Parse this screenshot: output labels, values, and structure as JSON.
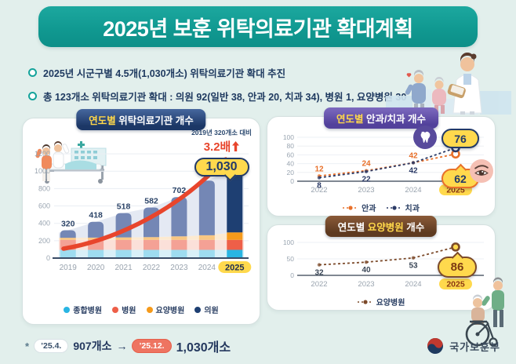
{
  "header": {
    "title": "2025년 보훈 위탁의료기관 확대계획"
  },
  "bullets": [
    "2025년 시군구별 4.5개(1,030개소) 위탁의료기관 확대 추진",
    "총 123개소 위탁의료기관 확대 : 의원 92(일반 38, 안과 20, 치과 34), 병원 1, 요양병원 30"
  ],
  "colors": {
    "banner_teal": "#12a098",
    "panel_navy": "#1c3766",
    "panel_purple": "#52419b",
    "panel_brown": "#5e3a20",
    "highlight_yellow": "#ffd94d",
    "arrow_red": "#e8452c",
    "eye_orange": "#e8702a",
    "dental_navy": "#2b3a66",
    "nursing_brown": "#7c4a2a",
    "text_navy": "#1f3a60"
  },
  "chart_data": [
    {
      "type": "bar",
      "title_parts": [
        [
          "연도별",
          "hl"
        ],
        [
          " 위탁의료기관 개수",
          "w"
        ]
      ],
      "categories": [
        "2019",
        "2020",
        "2021",
        "2022",
        "2023",
        "2024",
        "2025"
      ],
      "totals": [
        320,
        418,
        518,
        582,
        702,
        892,
        1030
      ],
      "total_labels": [
        "320",
        "418",
        "518",
        "582",
        "702",
        "892",
        "1,030"
      ],
      "series": [
        {
          "name": "종합병원",
          "color": "#9edcf0",
          "color_highlight": "#29b5e3",
          "values": [
            95,
            95,
            95,
            95,
            95,
            95,
            95
          ]
        },
        {
          "name": "병원",
          "color": "#f4a195",
          "color_highlight": "#ee5f48",
          "values": [
            115,
            115,
            115,
            115,
            115,
            115,
            115
          ]
        },
        {
          "name": "요양병원",
          "color": "#f8c783",
          "color_highlight": "#f59a1b",
          "values": [
            24,
            26,
            28,
            32,
            40,
            53,
            86
          ]
        },
        {
          "name": "의원",
          "color": "#7487b5",
          "color_highlight": "#1e3f72",
          "values": [
            86,
            182,
            280,
            340,
            452,
            629,
            734
          ]
        }
      ],
      "ylim": [
        0,
        1300
      ],
      "yticks": [
        0,
        200,
        400,
        600,
        800,
        1000,
        1200
      ],
      "grid": true,
      "legend_position": "bottom",
      "highlight_year": "2025",
      "annotation": {
        "line1": "2019년 320개소 대비",
        "multiplier": "3.2배",
        "badge": "1,030"
      }
    },
    {
      "type": "line",
      "title_parts": [
        [
          "연도별",
          "hl"
        ],
        [
          " 안과/치과 개수",
          "w"
        ]
      ],
      "categories": [
        "2022",
        "2023",
        "2024",
        "2025"
      ],
      "series": [
        {
          "name": "안과",
          "color": "#e8702a",
          "values": [
            12,
            24,
            42,
            62
          ]
        },
        {
          "name": "치과",
          "color": "#2b3a66",
          "values": [
            8,
            22,
            42,
            76
          ]
        }
      ],
      "yticks": [
        0,
        20,
        40,
        60,
        80,
        100
      ],
      "ylim": [
        0,
        100
      ],
      "grid": true,
      "legend_position": "bottom",
      "highlight_year": "2025",
      "badges": [
        {
          "value": "76",
          "icon": "tooth-icon",
          "series": "치과"
        },
        {
          "value": "62",
          "icon": "eye-icon",
          "series": "안과"
        }
      ]
    },
    {
      "type": "line",
      "title_parts": [
        [
          "연도별 ",
          "w"
        ],
        [
          "요양병원",
          "hl"
        ],
        [
          " 개수",
          "w"
        ]
      ],
      "categories": [
        "2022",
        "2023",
        "2024",
        "2025"
      ],
      "series": [
        {
          "name": "요양병원",
          "color": "#7c4a2a",
          "values": [
            32,
            40,
            53,
            86
          ]
        }
      ],
      "yticks": [
        0,
        50,
        100
      ],
      "ylim": [
        0,
        100
      ],
      "grid": true,
      "legend_position": "bottom",
      "highlight_year": "2025",
      "badges": [
        {
          "value": "86",
          "icon": "none",
          "series": "요양병원"
        }
      ]
    }
  ],
  "footnote": {
    "marker": "*",
    "from_label": "’25.4.",
    "from_value": "907개소",
    "arrow": "→",
    "to_label": "’25.12.",
    "to_value": "1,030개소"
  },
  "logo": {
    "label": "국가보훈부"
  }
}
